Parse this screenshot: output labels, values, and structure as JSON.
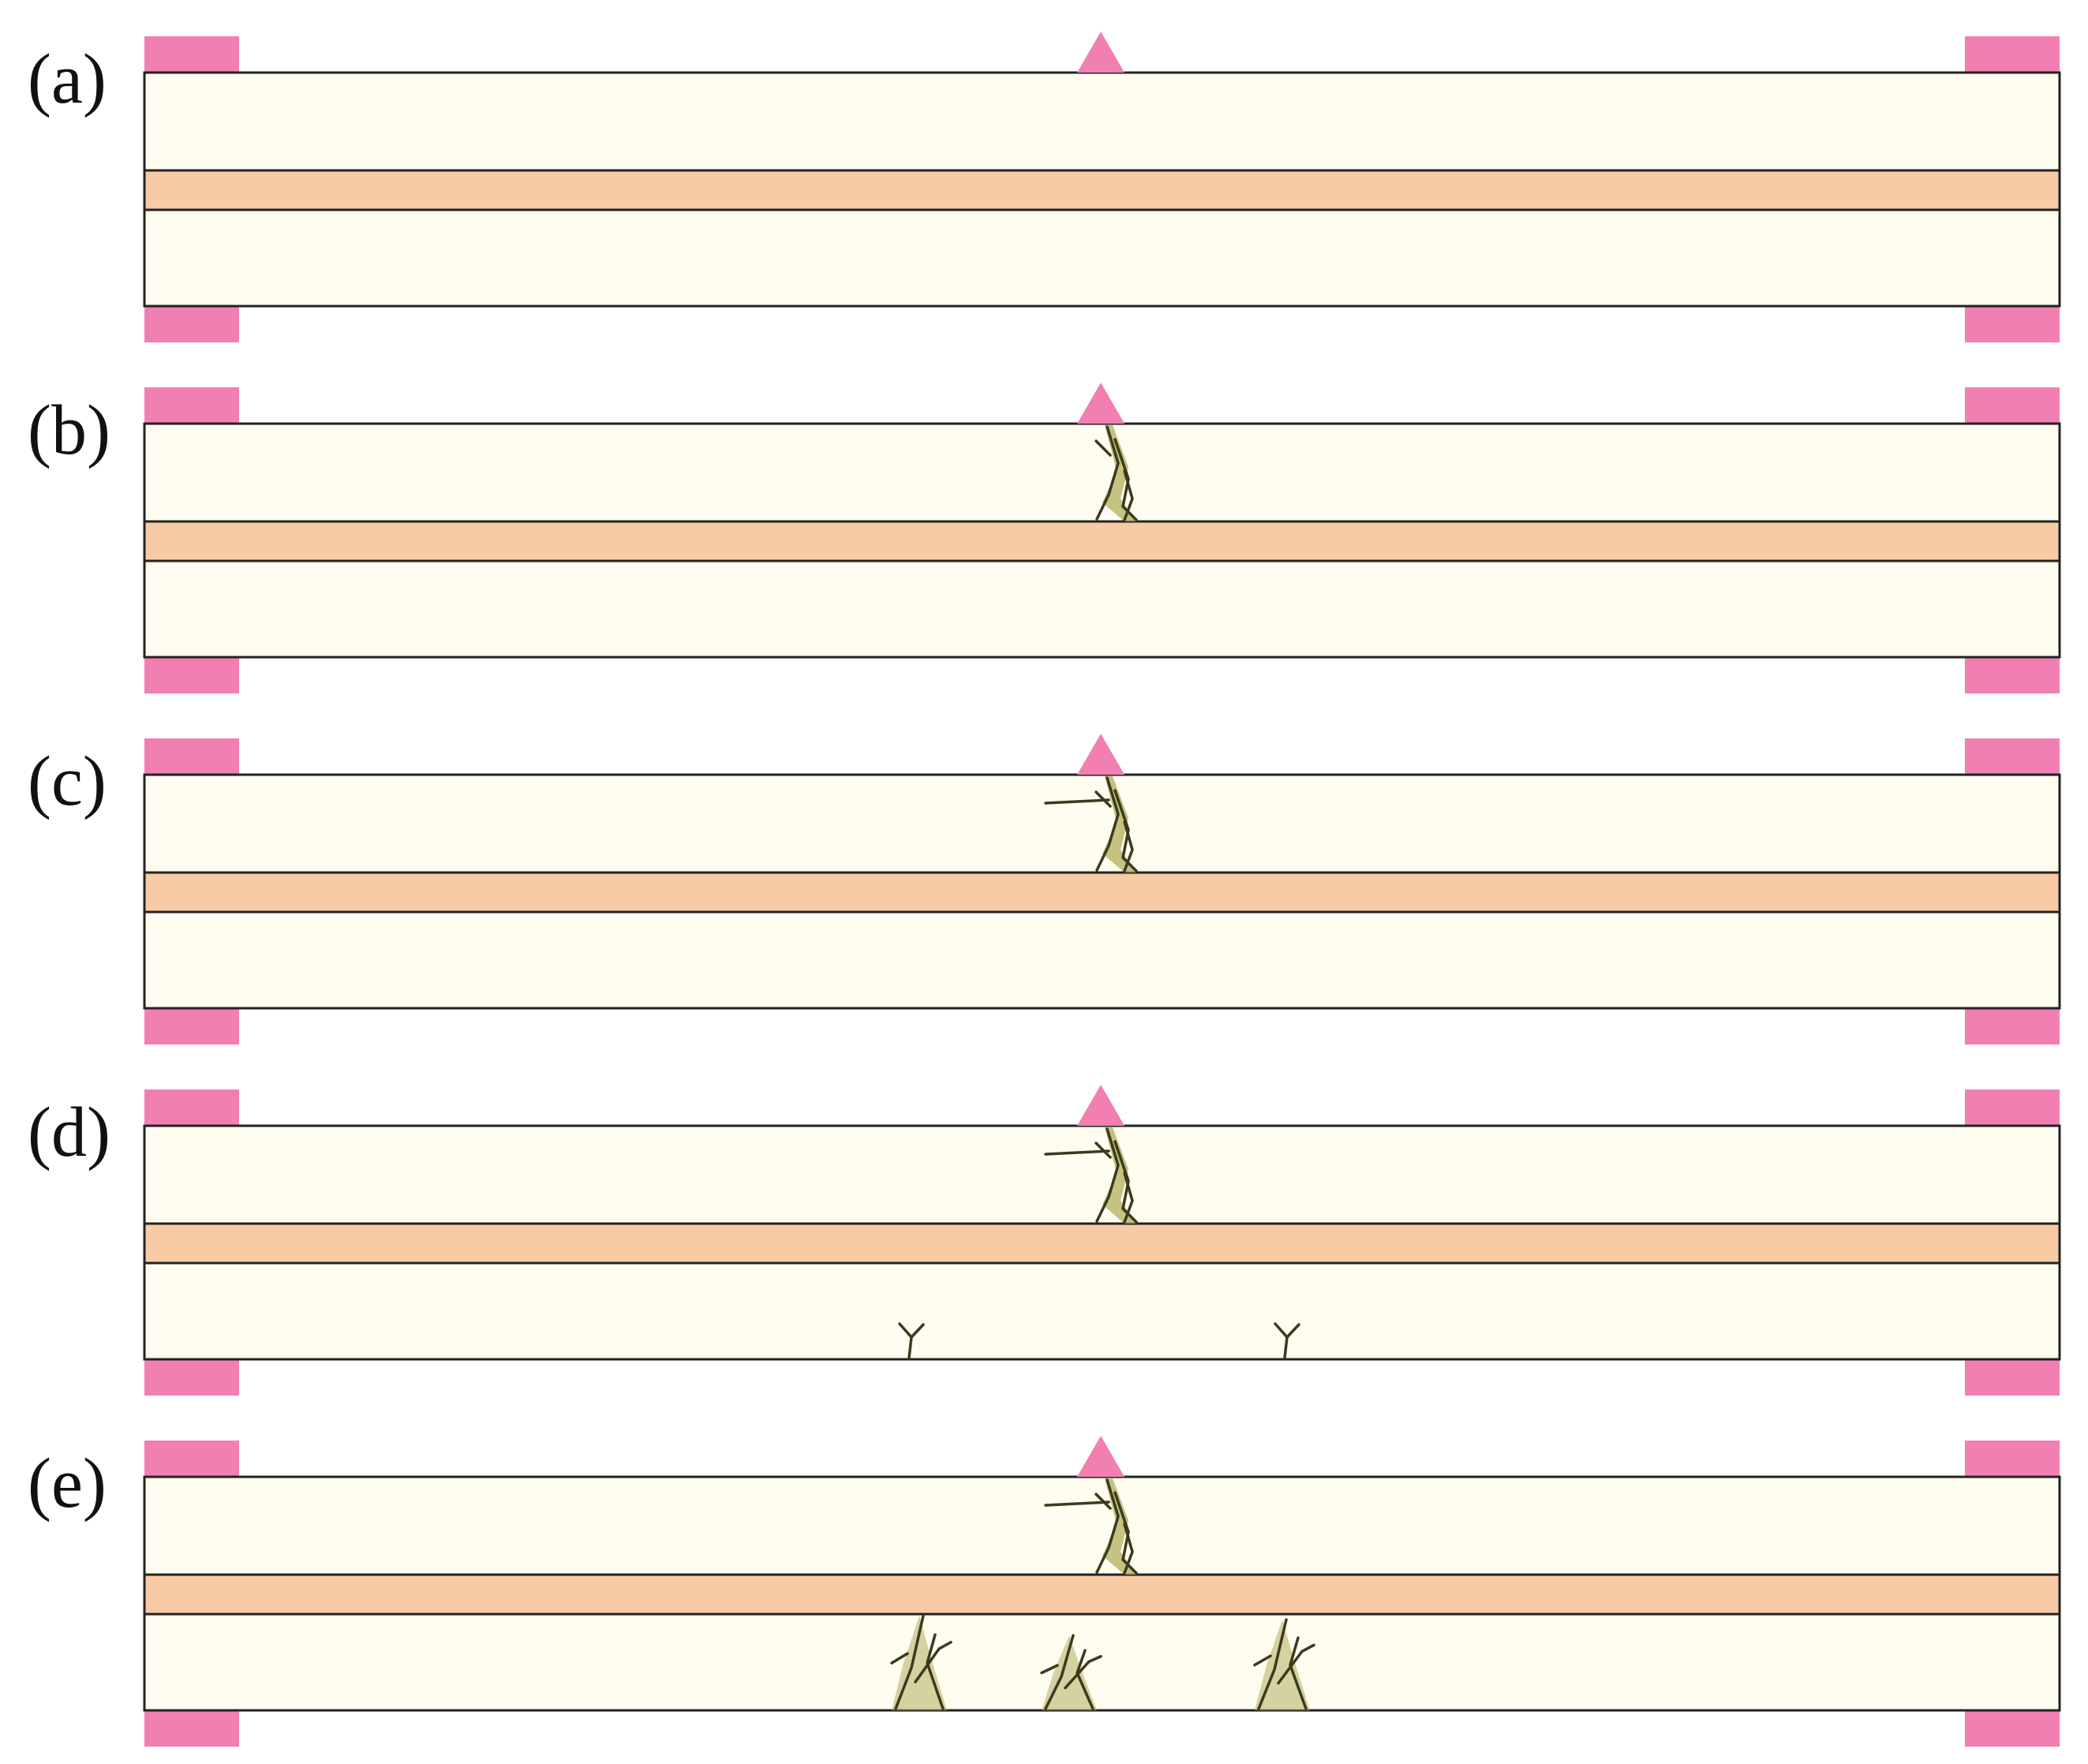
{
  "figure": {
    "colors": {
      "background": "#ffffff",
      "beam": "#fefdf0",
      "core_layer": "#f8cba4",
      "support": "#f27fb2",
      "load_point": "#f27fb2",
      "crack": "#3d3a1c",
      "crack_fill": "#b2ad5e"
    },
    "panels": [
      {
        "label": "(a)",
        "top_crack": false,
        "bottom_cracks": "none"
      },
      {
        "label": "(b)",
        "top_crack": true,
        "bottom_cracks": "none"
      },
      {
        "label": "(c)",
        "top_crack": true,
        "bottom_cracks": "none"
      },
      {
        "label": "(d)",
        "top_crack": true,
        "bottom_cracks": "initial"
      },
      {
        "label": "(e)",
        "top_crack": true,
        "bottom_cracks": "developed"
      }
    ]
  }
}
